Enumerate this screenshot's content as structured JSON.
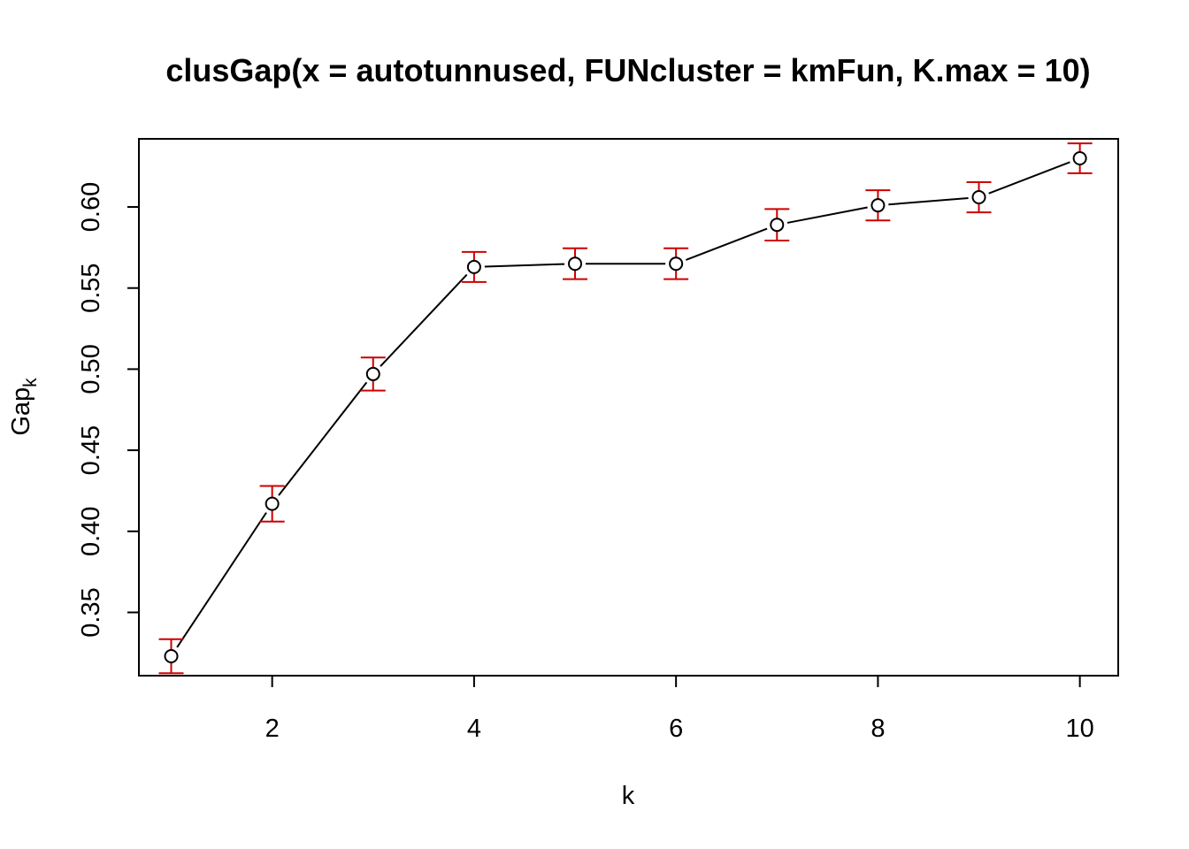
{
  "chart_data": {
    "type": "line",
    "title": "clusGap(x = autotunnused, FUNcluster = kmFun, K.max = 10)",
    "xlabel": "k",
    "ylabel_main": "Gap",
    "ylabel_sub": "k",
    "xlim": [
      0.68,
      10.38
    ],
    "ylim": [
      0.311,
      0.642
    ],
    "xticks": [
      2,
      4,
      6,
      8,
      10
    ],
    "yticks": [
      0.35,
      0.4,
      0.45,
      0.5,
      0.55,
      0.6
    ],
    "ytick_labels": [
      "0.35",
      "0.40",
      "0.45",
      "0.50",
      "0.55",
      "0.60"
    ],
    "grid": false,
    "x": [
      1,
      2,
      3,
      4,
      5,
      6,
      7,
      8,
      9,
      10
    ],
    "values": [
      0.323,
      0.417,
      0.497,
      0.563,
      0.565,
      0.565,
      0.589,
      0.601,
      0.606,
      0.63
    ],
    "se": [
      0.0105,
      0.011,
      0.0102,
      0.0093,
      0.0095,
      0.0095,
      0.0097,
      0.0093,
      0.0093,
      0.0092
    ],
    "line_color": "#000000",
    "errorbar_color": "#CD0000"
  }
}
